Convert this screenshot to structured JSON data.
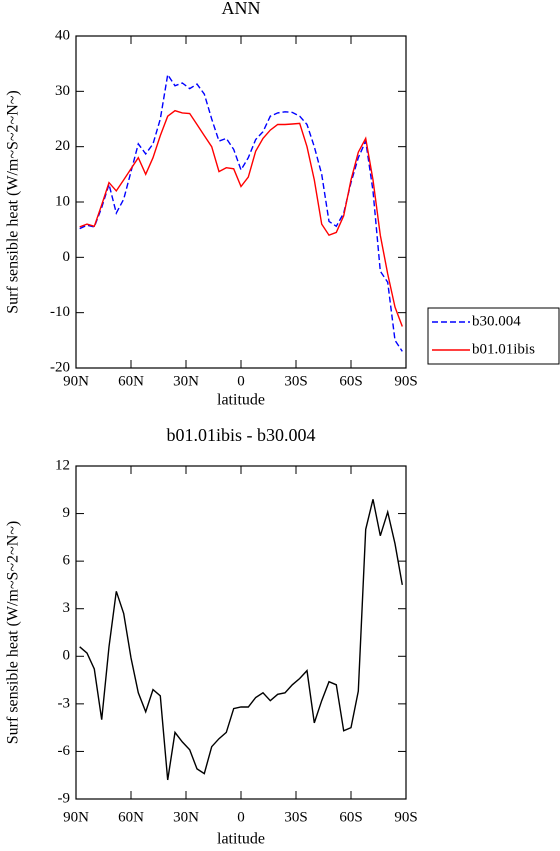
{
  "chart_data": [
    {
      "type": "line",
      "title": "ANN",
      "xlabel": "latitude",
      "ylabel": "Surf sensible heat (W/m~S~2~N~)",
      "x": [
        88,
        84,
        80,
        76,
        72,
        68,
        64,
        60,
        56,
        52,
        48,
        44,
        40,
        36,
        32,
        28,
        24,
        20,
        16,
        12,
        8,
        4,
        0,
        -4,
        -8,
        -12,
        -16,
        -20,
        -24,
        -28,
        -32,
        -36,
        -40,
        -44,
        -48,
        -52,
        -56,
        -60,
        -64,
        -68,
        -72,
        -76,
        -80,
        -84,
        -88
      ],
      "series": [
        {
          "name": "b30.004",
          "color": "#0000ff",
          "style": "dashed",
          "values": [
            5.2,
            5.8,
            5.5,
            9,
            13.2,
            8,
            10.5,
            15.5,
            20.5,
            18.7,
            20.5,
            25,
            33,
            31,
            31.5,
            30.5,
            31.3,
            29.5,
            25,
            21,
            21.5,
            19.5,
            15.8,
            18,
            21.3,
            22.7,
            25.5,
            26.1,
            26.3,
            26.2,
            25.5,
            24,
            20,
            15,
            6.5,
            5.6,
            8,
            13.5,
            18,
            21,
            12,
            -2.5,
            -4.5,
            -15,
            -17
          ]
        },
        {
          "name": "b01.01ibis",
          "color": "#ff0000",
          "style": "solid",
          "values": [
            5.5,
            6,
            5.6,
            9.5,
            13.5,
            12,
            14,
            16,
            18,
            15,
            18,
            22,
            25.5,
            26.5,
            26.1,
            26,
            24,
            22,
            20,
            15.5,
            16.2,
            16,
            12.8,
            14.5,
            19.2,
            21.5,
            23,
            24,
            24,
            24.1,
            24.2,
            20,
            14,
            6,
            4,
            4.5,
            7.5,
            14,
            19,
            21.5,
            14,
            4,
            -3,
            -9,
            -12.5
          ]
        }
      ],
      "xlim": [
        90,
        -90
      ],
      "xticks": [
        {
          "value": 90,
          "label": "90N"
        },
        {
          "value": 60,
          "label": "60N"
        },
        {
          "value": 30,
          "label": "30N"
        },
        0,
        {
          "value": -30,
          "label": "30S"
        },
        {
          "value": -60,
          "label": "60S"
        },
        {
          "value": -90,
          "label": "90S"
        }
      ],
      "ylim": [
        -20,
        40
      ],
      "yticks": [
        -20,
        -10,
        0,
        10,
        20,
        30,
        40
      ],
      "legend": "right"
    },
    {
      "type": "line",
      "title": "b01.01ibis - b30.004",
      "xlabel": "latitude",
      "ylabel": "Surf sensible heat (W/m~S~2~N~)",
      "x": [
        88,
        84,
        80,
        76,
        72,
        68,
        64,
        60,
        56,
        52,
        48,
        44,
        40,
        36,
        32,
        28,
        24,
        20,
        16,
        12,
        8,
        4,
        0,
        -4,
        -8,
        -12,
        -16,
        -20,
        -24,
        -28,
        -32,
        -36,
        -40,
        -44,
        -48,
        -52,
        -56,
        -60,
        -64,
        -68,
        -72,
        -76,
        -80,
        -84,
        -88
      ],
      "values": [
        0.6,
        0.2,
        -0.8,
        -4,
        0.6,
        4.1,
        2.7,
        -0.1,
        -2.3,
        -3.5,
        -2.1,
        -2.5,
        -7.8,
        -4.8,
        -5.4,
        -5.9,
        -7.1,
        -7.4,
        -5.7,
        -5.2,
        -4.8,
        -3.3,
        -3.2,
        -3.2,
        -2.6,
        -2.3,
        -2.8,
        -2.4,
        -2.3,
        -1.8,
        -1.4,
        -0.9,
        -4.2,
        -2.8,
        -1.6,
        -1.8,
        -4.7,
        -4.5,
        -2.2,
        8,
        9.9,
        7.6,
        9.1,
        7.1,
        4.5
      ],
      "color": "#000000",
      "xlim": [
        90,
        -90
      ],
      "xticks": [
        {
          "value": 90,
          "label": "90N"
        },
        {
          "value": 60,
          "label": "60N"
        },
        {
          "value": 30,
          "label": "30N"
        },
        0,
        {
          "value": -30,
          "label": "30S"
        },
        {
          "value": -60,
          "label": "60S"
        },
        {
          "value": -90,
          "label": "90S"
        }
      ],
      "ylim": [
        -9,
        12
      ],
      "yticks": [
        -9,
        -6,
        -3,
        0,
        3,
        6,
        9,
        12
      ]
    }
  ]
}
